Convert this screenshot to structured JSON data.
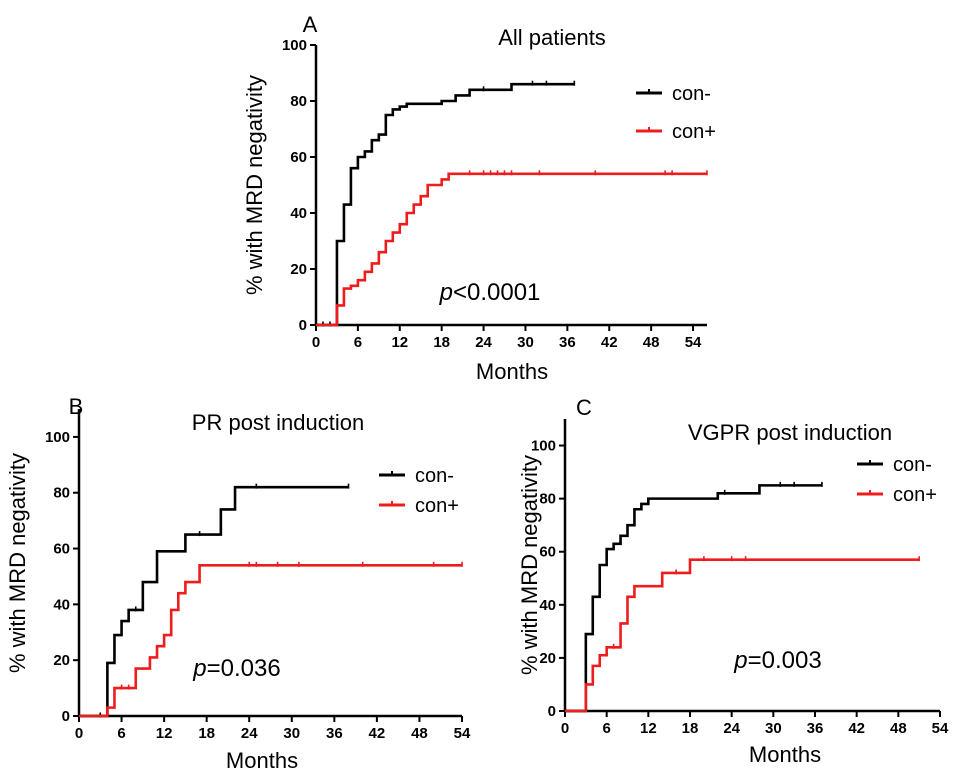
{
  "colors": {
    "con_minus": "#000000",
    "con_plus": "#ee1c1c"
  },
  "chart_data": [
    {
      "type": "line",
      "panel_label": "A",
      "title": "All patients",
      "xlabel": "Months",
      "ylabel": "% with MRD negativity",
      "xlim": [
        0,
        56
      ],
      "ylim": [
        0,
        100
      ],
      "x_ticks": [
        "0",
        "6",
        "12",
        "18",
        "24",
        "30",
        "36",
        "42",
        "48",
        "54"
      ],
      "y_ticks": [
        "0",
        "20",
        "40",
        "60",
        "80",
        "100"
      ],
      "annotation": {
        "italic": "p",
        "rest": "<0.0001"
      },
      "legend_position": "top-right",
      "series": [
        {
          "name": "con-",
          "color": "#000000",
          "steps": [
            [
              0,
              0
            ],
            [
              3,
              30
            ],
            [
              4,
              43
            ],
            [
              5,
              56
            ],
            [
              6,
              60
            ],
            [
              7,
              62
            ],
            [
              8,
              66
            ],
            [
              9,
              68
            ],
            [
              10,
              75
            ],
            [
              11,
              77
            ],
            [
              12,
              78
            ],
            [
              13,
              79
            ],
            [
              18,
              80
            ],
            [
              20,
              82
            ],
            [
              22,
              84
            ],
            [
              28,
              86
            ],
            [
              37,
              86
            ]
          ],
          "censored": [
            [
              1,
              0
            ],
            [
              2,
              0
            ],
            [
              24,
              84
            ],
            [
              31,
              86
            ],
            [
              33,
              86
            ],
            [
              37,
              86
            ]
          ]
        },
        {
          "name": "con+",
          "color": "#ee1c1c",
          "steps": [
            [
              0,
              0
            ],
            [
              3,
              7
            ],
            [
              4,
              13
            ],
            [
              5,
              14
            ],
            [
              6,
              16
            ],
            [
              7,
              19
            ],
            [
              8,
              22
            ],
            [
              9,
              26
            ],
            [
              10,
              30
            ],
            [
              11,
              33
            ],
            [
              12,
              36
            ],
            [
              13,
              40
            ],
            [
              14,
              43
            ],
            [
              15,
              46
            ],
            [
              16,
              50
            ],
            [
              18,
              52
            ],
            [
              19,
              54
            ],
            [
              56,
              54
            ]
          ],
          "censored": [
            [
              22,
              54
            ],
            [
              24,
              54
            ],
            [
              25,
              54
            ],
            [
              26,
              54
            ],
            [
              27,
              54
            ],
            [
              28,
              54
            ],
            [
              32,
              54
            ],
            [
              40,
              54
            ],
            [
              50,
              54
            ],
            [
              51,
              54
            ],
            [
              56,
              54
            ]
          ]
        }
      ]
    },
    {
      "type": "line",
      "panel_label": "B",
      "title": "PR post induction",
      "xlabel": "Months",
      "ylabel": "% with MRD negativity",
      "xlim": [
        0,
        54
      ],
      "ylim": [
        0,
        110
      ],
      "x_ticks": [
        "0",
        "6",
        "12",
        "18",
        "24",
        "30",
        "36",
        "42",
        "48",
        "54"
      ],
      "y_ticks": [
        "0",
        "20",
        "40",
        "60",
        "80",
        "100"
      ],
      "annotation": {
        "italic": "p",
        "rest": "=0.036"
      },
      "legend_position": "top-right",
      "series": [
        {
          "name": "con-",
          "color": "#000000",
          "steps": [
            [
              0,
              0
            ],
            [
              4,
              19
            ],
            [
              5,
              29
            ],
            [
              6,
              34
            ],
            [
              7,
              38
            ],
            [
              9,
              48
            ],
            [
              11,
              59
            ],
            [
              15,
              65
            ],
            [
              20,
              74
            ],
            [
              22,
              82
            ],
            [
              38,
              82
            ]
          ],
          "censored": [
            [
              3,
              0
            ],
            [
              8,
              38
            ],
            [
              17,
              65
            ],
            [
              25,
              82
            ],
            [
              38,
              82
            ]
          ]
        },
        {
          "name": "con+",
          "color": "#ee1c1c",
          "steps": [
            [
              0,
              0
            ],
            [
              4,
              3
            ],
            [
              5,
              10
            ],
            [
              8,
              17
            ],
            [
              10,
              21
            ],
            [
              11,
              25
            ],
            [
              12,
              29
            ],
            [
              13,
              38
            ],
            [
              14,
              44
            ],
            [
              15,
              48
            ],
            [
              17,
              54
            ],
            [
              54,
              54
            ]
          ],
          "censored": [
            [
              6,
              10
            ],
            [
              7,
              10
            ],
            [
              24,
              54
            ],
            [
              25,
              54
            ],
            [
              28,
              54
            ],
            [
              31,
              54
            ],
            [
              40,
              54
            ],
            [
              50,
              54
            ],
            [
              54,
              54
            ]
          ]
        }
      ]
    },
    {
      "type": "line",
      "panel_label": "C",
      "title": "VGPR post induction",
      "xlabel": "Months",
      "ylabel": "% with MRD negativity",
      "xlim": [
        0,
        54
      ],
      "ylim": [
        0,
        110
      ],
      "x_ticks": [
        "0",
        "6",
        "12",
        "18",
        "24",
        "30",
        "36",
        "42",
        "48",
        "54"
      ],
      "y_ticks": [
        "0",
        "20",
        "40",
        "60",
        "80",
        "100"
      ],
      "annotation": {
        "italic": "p",
        "rest": "=0.003"
      },
      "legend_position": "top-right",
      "series": [
        {
          "name": "con-",
          "color": "#000000",
          "steps": [
            [
              0,
              0
            ],
            [
              3,
              29
            ],
            [
              4,
              43
            ],
            [
              5,
              55
            ],
            [
              6,
              61
            ],
            [
              7,
              63
            ],
            [
              8,
              66
            ],
            [
              9,
              70
            ],
            [
              10,
              76
            ],
            [
              11,
              78
            ],
            [
              12,
              80
            ],
            [
              21,
              80
            ],
            [
              22,
              82
            ],
            [
              28,
              85
            ],
            [
              37,
              85
            ]
          ],
          "censored": [
            [
              23,
              82
            ],
            [
              31,
              85
            ],
            [
              33,
              85
            ],
            [
              37,
              85
            ]
          ]
        },
        {
          "name": "con+",
          "color": "#ee1c1c",
          "steps": [
            [
              0,
              0
            ],
            [
              3,
              10
            ],
            [
              4,
              17
            ],
            [
              5,
              21
            ],
            [
              6,
              24
            ],
            [
              8,
              33
            ],
            [
              9,
              43
            ],
            [
              10,
              47
            ],
            [
              14,
              52
            ],
            [
              18,
              57
            ],
            [
              51,
              57
            ]
          ],
          "censored": [
            [
              7,
              24
            ],
            [
              16,
              52
            ],
            [
              20,
              57
            ],
            [
              24,
              57
            ],
            [
              26,
              57
            ],
            [
              51,
              57
            ]
          ]
        }
      ]
    }
  ]
}
